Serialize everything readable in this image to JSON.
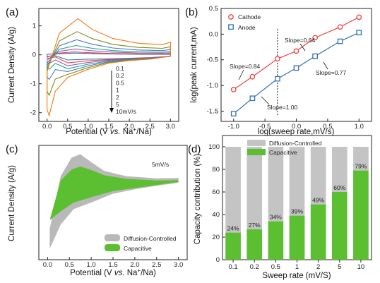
{
  "colors": {
    "cathode": "#e8423b",
    "anode": "#2f6fb8",
    "diffusion": "#b9b9b9",
    "capacitive": "#5cbf32",
    "bar_total": "#c4c4c4"
  },
  "panel_a": {
    "label": "(a)",
    "xlabel_pre": "Potential (V ",
    "xlabel_vs": "vs.",
    "xlabel_post": " Na",
    "xlabel_sup": "+",
    "xlabel_end": "/Na)",
    "ylabel": "Current Density (A/g)",
    "xticks": [
      "0.0",
      "0.5",
      "1.0",
      "1.5",
      "2.0",
      "2.5",
      "3.0"
    ],
    "yticks": [
      "-2",
      "-1",
      "0",
      "1"
    ],
    "rates": [
      "0.1",
      "0.2",
      "0.5",
      "1",
      "2",
      "5",
      "10mV/s"
    ]
  },
  "panel_b": {
    "label": "(b)",
    "xlabel": "log(sweep rate,mV/s)",
    "ylabel": "log(peak current,mA)",
    "xticks": [
      "-1.0",
      "-0.5",
      "0.0",
      "0.5",
      "1.0"
    ],
    "yticks": [
      "-1.5",
      "-1.0",
      "-0.5",
      "0.0",
      "0.5"
    ],
    "legend": [
      "Cathode",
      "Anode"
    ],
    "slopes": [
      "Slope=0.84",
      "Slope=0.64",
      "Slope=1.00",
      "Slope=0.77"
    ]
  },
  "panel_c": {
    "label": "(c)",
    "rate_label": "5mV/s",
    "xlabel_pre": "Potential (V ",
    "xlabel_vs": "vs.",
    "xlabel_post": " Na",
    "xlabel_sup": "+",
    "xlabel_end": "/Na)",
    "ylabel": "Current Density (A/g)",
    "xticks": [
      "0.0",
      "0.5",
      "1.0",
      "1.5",
      "2.0",
      "2.5",
      "3.0"
    ],
    "legend": [
      "Diffusion-Controlled",
      "Capacitive"
    ]
  },
  "panel_d": {
    "label": "(d)",
    "xlabel": "Sweep rate (mV/S)",
    "ylabel": "Capacity contribution (%)",
    "yticks": [
      "0",
      "20",
      "40",
      "60",
      "80",
      "100"
    ],
    "legend": [
      "Diffusion-Controlled",
      "Capacitive"
    ]
  },
  "chart_data": [
    {
      "type": "line",
      "title": "",
      "xlabel": "Potential (V vs. Na+/Na)",
      "ylabel": "Current Density (A/g)",
      "xlim": [
        -0.2,
        3.2
      ],
      "ylim": [
        -2.3,
        1.6
      ],
      "series": [
        {
          "name": "0.1",
          "ox_peak": [
            0.65,
            0.06
          ],
          "red_peak": [
            0.05,
            -0.05
          ]
        },
        {
          "name": "0.2",
          "ox_peak": [
            0.65,
            0.1
          ],
          "red_peak": [
            0.05,
            -0.12
          ]
        },
        {
          "name": "0.5",
          "ox_peak": [
            0.68,
            0.2
          ],
          "red_peak": [
            0.05,
            -0.3
          ]
        },
        {
          "name": "1",
          "ox_peak": [
            0.7,
            0.32
          ],
          "red_peak": [
            0.05,
            -0.5
          ]
        },
        {
          "name": "2",
          "ox_peak": [
            0.72,
            0.52
          ],
          "red_peak": [
            0.05,
            -0.85
          ]
        },
        {
          "name": "5",
          "ox_peak": [
            0.73,
            0.8
          ],
          "red_peak": [
            0.05,
            -1.4
          ]
        },
        {
          "name": "10mV/s",
          "ox_peak": [
            0.75,
            1.25
          ],
          "red_peak": [
            0.05,
            -2.1
          ]
        }
      ]
    },
    {
      "type": "scatter",
      "title": "",
      "xlabel": "log(sweep rate,mV/s)",
      "ylabel": "log(peak current,mA)",
      "xlim": [
        -1.2,
        1.2
      ],
      "ylim": [
        -1.7,
        0.5
      ],
      "x": [
        -1.0,
        -0.7,
        -0.3,
        0.0,
        0.3,
        0.7,
        1.0
      ],
      "series": [
        {
          "name": "Cathode",
          "values": [
            -1.08,
            -0.83,
            -0.48,
            -0.33,
            -0.07,
            0.14,
            0.33
          ]
        },
        {
          "name": "Anode",
          "values": [
            -1.55,
            -1.25,
            -0.87,
            -0.66,
            -0.43,
            -0.14,
            0.03
          ]
        }
      ],
      "vline_x": -0.3
    },
    {
      "type": "area",
      "title": "5mV/s",
      "xlabel": "Potential (V vs. Na+/Na)",
      "ylabel": "Current Density (A/g)",
      "xlim": [
        -0.2,
        3.2
      ],
      "ylim": [
        -1.6,
        1.0
      ],
      "series": [
        {
          "name": "Diffusion-Controlled",
          "upper": [
            [
              0.05,
              -0.9
            ],
            [
              0.3,
              0.3
            ],
            [
              0.55,
              0.72
            ],
            [
              0.75,
              0.8
            ],
            [
              1.0,
              0.62
            ],
            [
              1.3,
              0.42
            ],
            [
              1.8,
              0.3
            ],
            [
              2.5,
              0.25
            ],
            [
              3.0,
              0.26
            ]
          ],
          "lower": [
            [
              0.05,
              -1.35
            ],
            [
              0.3,
              -0.8
            ],
            [
              0.6,
              -0.45
            ],
            [
              1.0,
              -0.3
            ],
            [
              1.5,
              -0.1
            ],
            [
              2.0,
              0.0
            ],
            [
              2.5,
              0.08
            ],
            [
              3.0,
              0.15
            ]
          ]
        },
        {
          "name": "Capacitive",
          "upper": [
            [
              0.05,
              -0.7
            ],
            [
              0.3,
              0.2
            ],
            [
              0.55,
              0.45
            ],
            [
              0.75,
              0.52
            ],
            [
              1.0,
              0.44
            ],
            [
              1.3,
              0.32
            ],
            [
              1.8,
              0.24
            ],
            [
              2.5,
              0.2
            ],
            [
              3.0,
              0.21
            ]
          ],
          "lower": [
            [
              0.05,
              -0.7
            ],
            [
              0.3,
              -0.5
            ],
            [
              0.6,
              -0.3
            ],
            [
              1.0,
              -0.18
            ],
            [
              1.5,
              -0.04
            ],
            [
              2.0,
              0.03
            ],
            [
              2.5,
              0.1
            ],
            [
              3.0,
              0.17
            ]
          ]
        }
      ]
    },
    {
      "type": "bar",
      "title": "",
      "xlabel": "Sweep rate (mV/S)",
      "ylabel": "Capacity contribution (%)",
      "ylim": [
        0,
        110
      ],
      "categories": [
        "0.1",
        "0.2",
        "0.5",
        "1",
        "2",
        "5",
        "10"
      ],
      "series": [
        {
          "name": "Diffusion-Controlled",
          "values": [
            76,
            73,
            66,
            61,
            51,
            40,
            21
          ]
        },
        {
          "name": "Capacitive",
          "values": [
            24,
            27,
            34,
            39,
            49,
            60,
            79
          ]
        }
      ],
      "labels": [
        "24%",
        "27%",
        "34%",
        "39%",
        "49%",
        "60%",
        "79%"
      ]
    }
  ]
}
